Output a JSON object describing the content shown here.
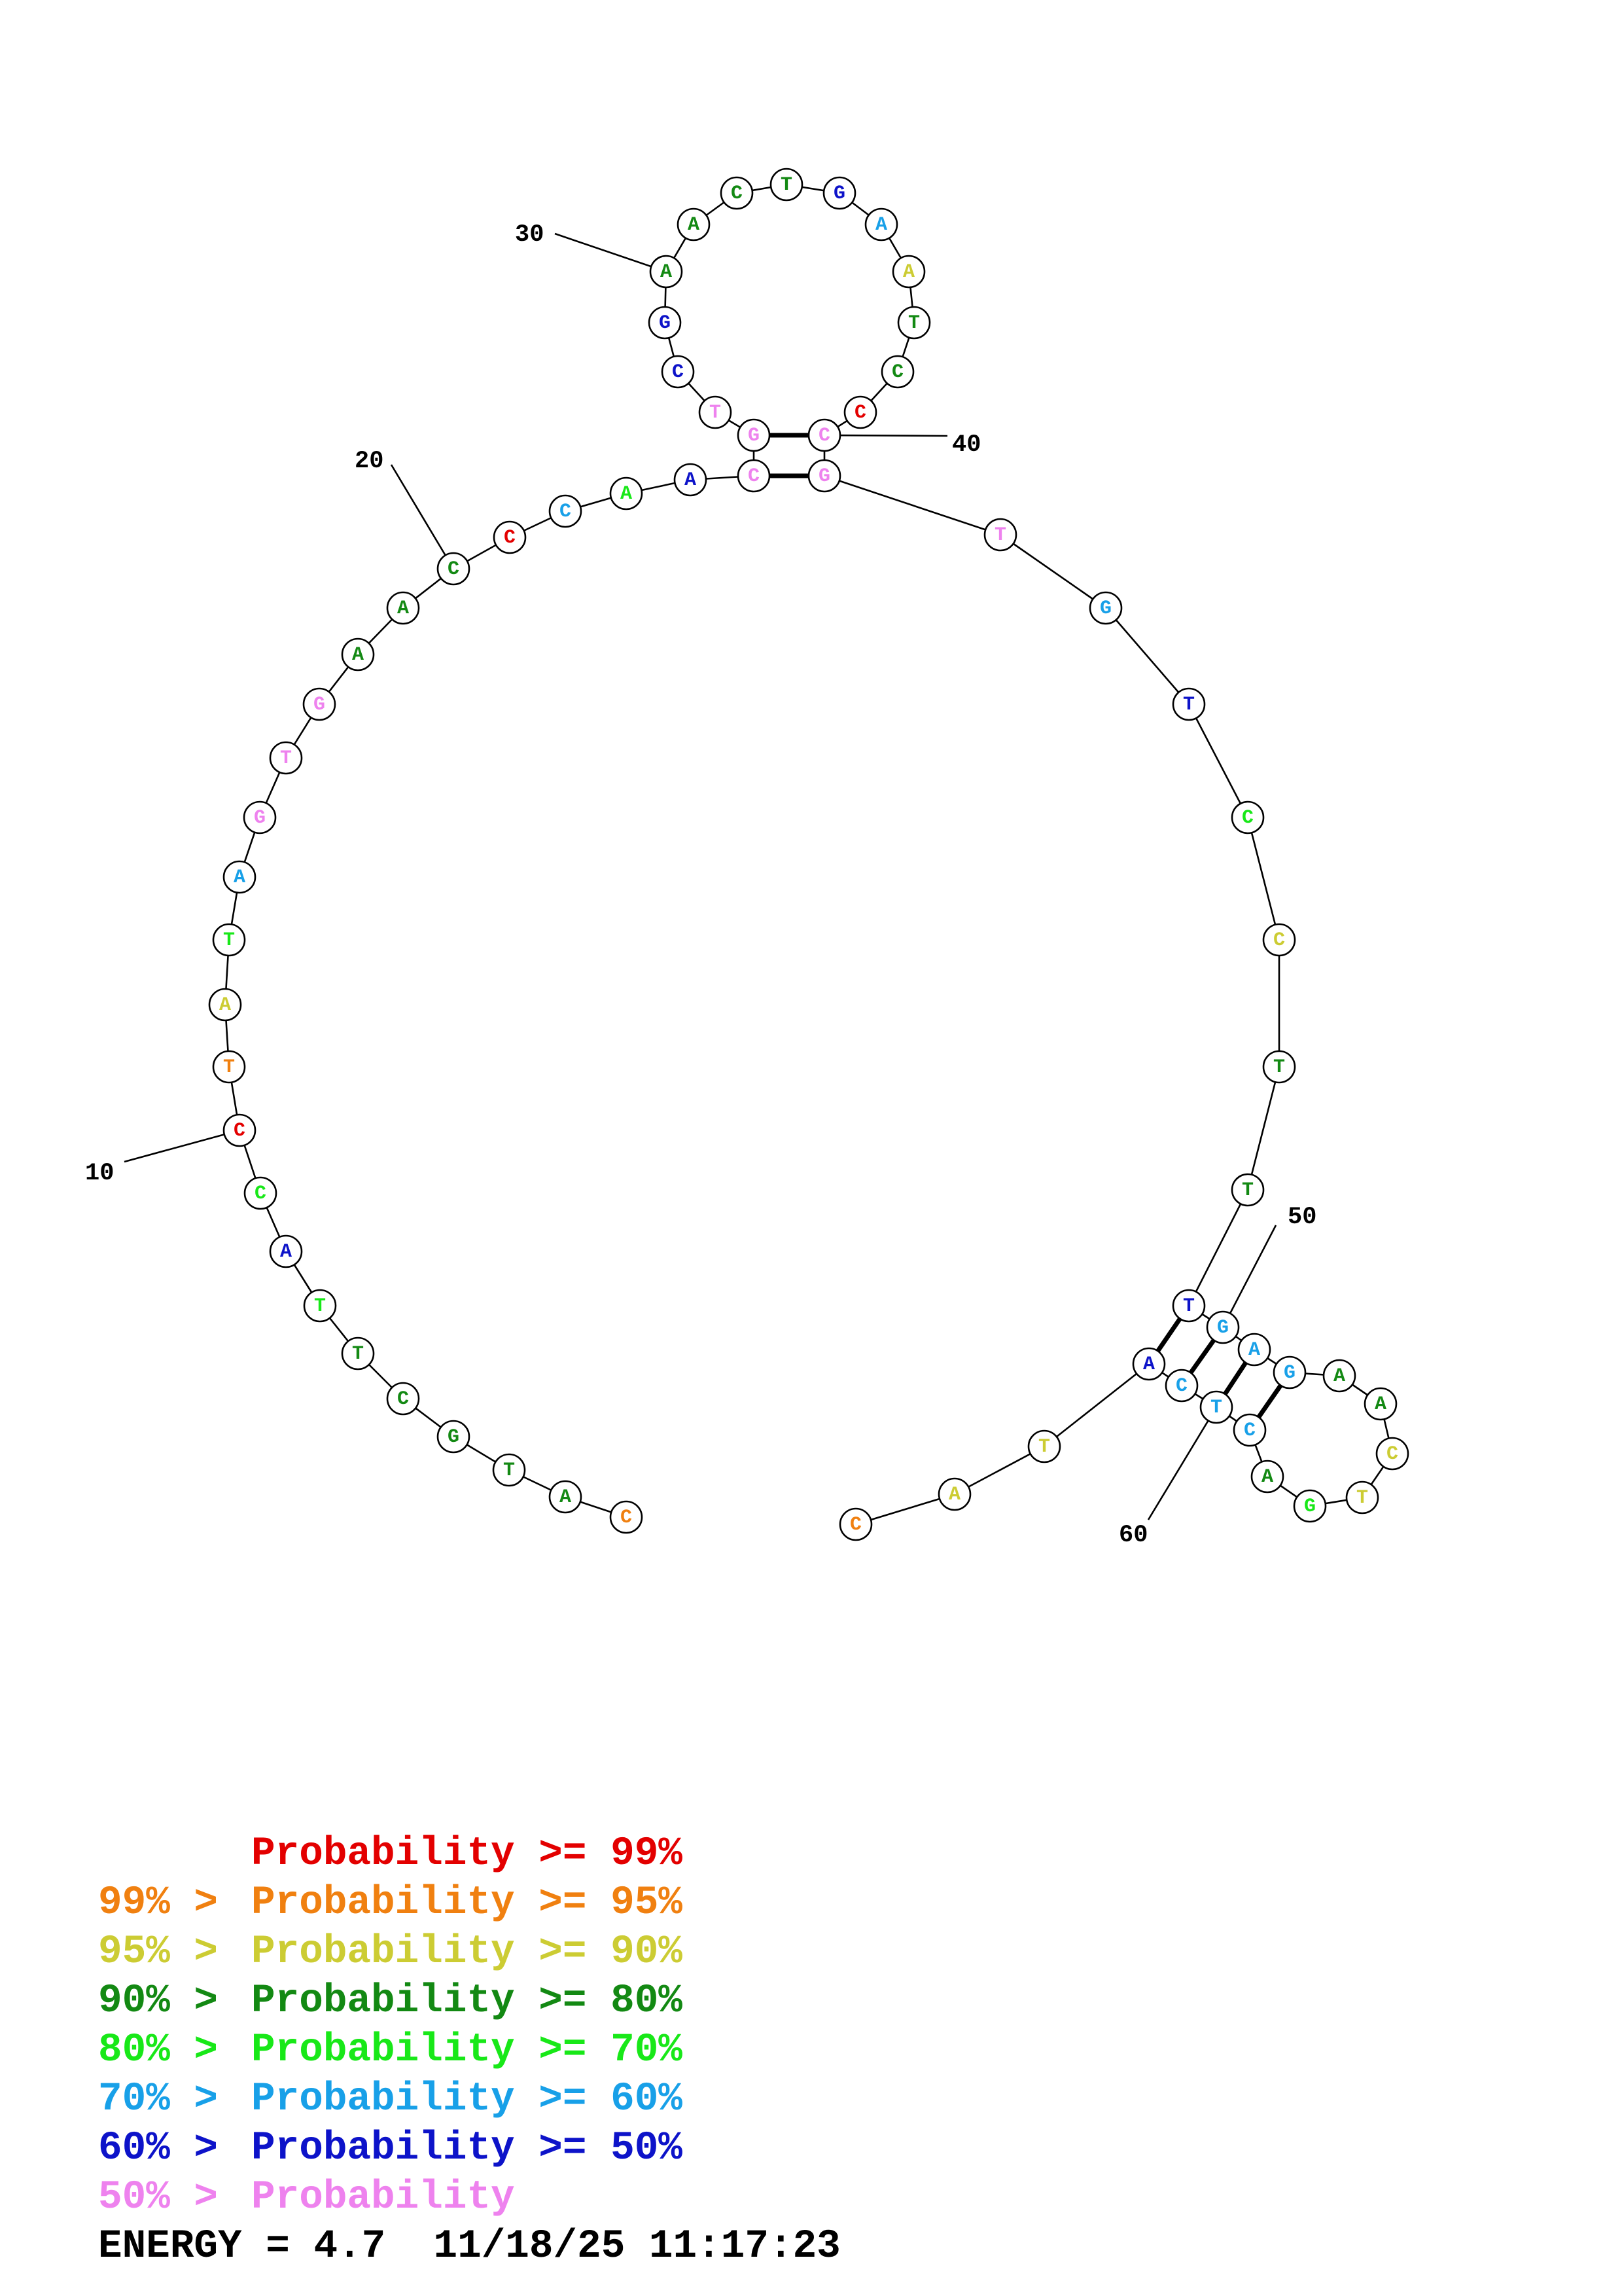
{
  "colors": {
    "red": "#e30000",
    "orange": "#f08010",
    "yellow": "#cccc33",
    "darkgreen": "#138913",
    "green": "#18e818",
    "cyan": "#18a0e8",
    "blue": "#0d13c9",
    "pink": "#ee82ee"
  },
  "sequence": [
    {
      "n": 1,
      "base": "C",
      "color": "orange"
    },
    {
      "n": 2,
      "base": "A",
      "color": "darkgreen"
    },
    {
      "n": 3,
      "base": "T",
      "color": "darkgreen"
    },
    {
      "n": 4,
      "base": "G",
      "color": "darkgreen"
    },
    {
      "n": 5,
      "base": "C",
      "color": "darkgreen"
    },
    {
      "n": 6,
      "base": "T",
      "color": "darkgreen"
    },
    {
      "n": 7,
      "base": "T",
      "color": "green"
    },
    {
      "n": 8,
      "base": "A",
      "color": "blue"
    },
    {
      "n": 9,
      "base": "C",
      "color": "green"
    },
    {
      "n": 10,
      "base": "C",
      "color": "red"
    },
    {
      "n": 11,
      "base": "T",
      "color": "orange"
    },
    {
      "n": 12,
      "base": "A",
      "color": "yellow"
    },
    {
      "n": 13,
      "base": "T",
      "color": "green"
    },
    {
      "n": 14,
      "base": "A",
      "color": "cyan"
    },
    {
      "n": 15,
      "base": "G",
      "color": "pink"
    },
    {
      "n": 16,
      "base": "T",
      "color": "pink"
    },
    {
      "n": 17,
      "base": "G",
      "color": "pink"
    },
    {
      "n": 18,
      "base": "A",
      "color": "darkgreen"
    },
    {
      "n": 19,
      "base": "A",
      "color": "darkgreen"
    },
    {
      "n": 20,
      "base": "C",
      "color": "darkgreen"
    },
    {
      "n": 21,
      "base": "C",
      "color": "red"
    },
    {
      "n": 22,
      "base": "C",
      "color": "cyan"
    },
    {
      "n": 23,
      "base": "A",
      "color": "green"
    },
    {
      "n": 24,
      "base": "A",
      "color": "blue"
    },
    {
      "n": 25,
      "base": "C",
      "color": "pink"
    },
    {
      "n": 26,
      "base": "G",
      "color": "pink"
    },
    {
      "n": 27,
      "base": "T",
      "color": "pink"
    },
    {
      "n": 28,
      "base": "C",
      "color": "blue"
    },
    {
      "n": 29,
      "base": "G",
      "color": "blue"
    },
    {
      "n": 30,
      "base": "A",
      "color": "darkgreen"
    },
    {
      "n": 31,
      "base": "A",
      "color": "darkgreen"
    },
    {
      "n": 32,
      "base": "C",
      "color": "darkgreen"
    },
    {
      "n": 33,
      "base": "T",
      "color": "darkgreen"
    },
    {
      "n": 34,
      "base": "G",
      "color": "blue"
    },
    {
      "n": 35,
      "base": "A",
      "color": "cyan"
    },
    {
      "n": 36,
      "base": "A",
      "color": "yellow"
    },
    {
      "n": 37,
      "base": "T",
      "color": "darkgreen"
    },
    {
      "n": 38,
      "base": "C",
      "color": "darkgreen"
    },
    {
      "n": 39,
      "base": "C",
      "color": "red"
    },
    {
      "n": 40,
      "base": "C",
      "color": "pink"
    },
    {
      "n": 41,
      "base": "G",
      "color": "pink"
    },
    {
      "n": 42,
      "base": "T",
      "color": "pink"
    },
    {
      "n": 43,
      "base": "G",
      "color": "cyan"
    },
    {
      "n": 44,
      "base": "T",
      "color": "blue"
    },
    {
      "n": 45,
      "base": "C",
      "color": "green"
    },
    {
      "n": 46,
      "base": "C",
      "color": "yellow"
    },
    {
      "n": 47,
      "base": "T",
      "color": "darkgreen"
    },
    {
      "n": 48,
      "base": "T",
      "color": "darkgreen"
    },
    {
      "n": 49,
      "base": "T",
      "color": "blue"
    },
    {
      "n": 50,
      "base": "G",
      "color": "cyan"
    },
    {
      "n": 51,
      "base": "A",
      "color": "cyan"
    },
    {
      "n": 52,
      "base": "G",
      "color": "cyan"
    },
    {
      "n": 53,
      "base": "A",
      "color": "darkgreen"
    },
    {
      "n": 54,
      "base": "A",
      "color": "darkgreen"
    },
    {
      "n": 55,
      "base": "C",
      "color": "yellow"
    },
    {
      "n": 56,
      "base": "T",
      "color": "yellow"
    },
    {
      "n": 57,
      "base": "G",
      "color": "green"
    },
    {
      "n": 58,
      "base": "A",
      "color": "darkgreen"
    },
    {
      "n": 59,
      "base": "C",
      "color": "cyan"
    },
    {
      "n": 60,
      "base": "T",
      "color": "cyan"
    },
    {
      "n": 61,
      "base": "C",
      "color": "cyan"
    },
    {
      "n": 62,
      "base": "A",
      "color": "blue"
    },
    {
      "n": 63,
      "base": "T",
      "color": "yellow"
    },
    {
      "n": 64,
      "base": "A",
      "color": "yellow"
    },
    {
      "n": 65,
      "base": "C",
      "color": "orange"
    }
  ],
  "pairs": [
    [
      25,
      41
    ],
    [
      26,
      40
    ],
    [
      49,
      62
    ],
    [
      50,
      61
    ],
    [
      51,
      60
    ],
    [
      52,
      59
    ]
  ],
  "position_labels": [
    {
      "text": "10",
      "nt": 10
    },
    {
      "text": "20",
      "nt": 20
    },
    {
      "text": "30",
      "nt": 30
    },
    {
      "text": "40",
      "nt": 40
    },
    {
      "text": "50",
      "nt": 50
    },
    {
      "text": "60",
      "nt": 60
    }
  ],
  "legend": [
    {
      "prefix": "    ",
      "label": "Probability >= 99%",
      "color": "red"
    },
    {
      "prefix": "99% > ",
      "label": "Probability >= 95%",
      "color": "orange"
    },
    {
      "prefix": "95% > ",
      "label": "Probability >= 90%",
      "color": "yellow"
    },
    {
      "prefix": "90% > ",
      "label": "Probability >= 80%",
      "color": "darkgreen"
    },
    {
      "prefix": "80% > ",
      "label": "Probability >= 70%",
      "color": "green"
    },
    {
      "prefix": "70% > ",
      "label": "Probability >= 60%",
      "color": "cyan"
    },
    {
      "prefix": "60% > ",
      "label": "Probability >= 50%",
      "color": "blue"
    },
    {
      "prefix": "50% > ",
      "label": "Probability",
      "color": "pink"
    }
  ],
  "energy": "ENERGY = 4.7  11/18/25 11:17:23"
}
